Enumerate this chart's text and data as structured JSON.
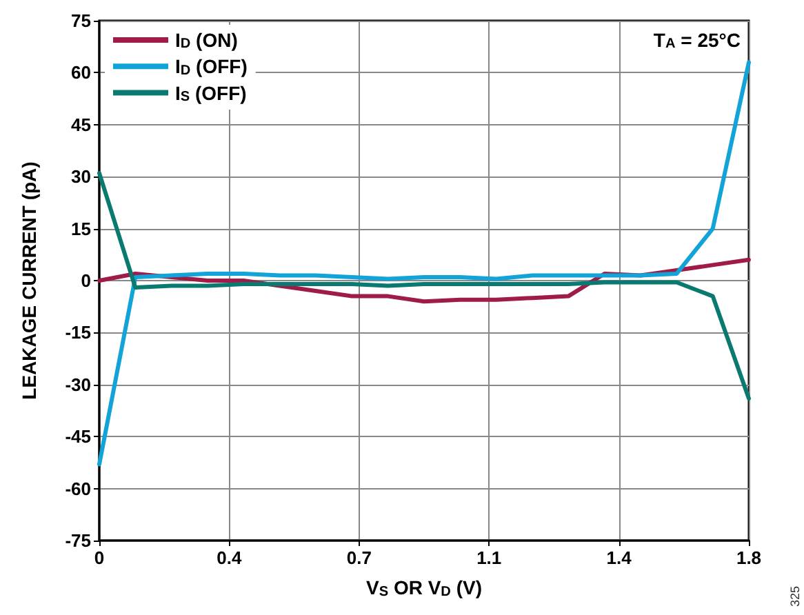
{
  "chart_data": {
    "type": "line",
    "xlabel": "V$_{S}$ OR V$_{D}$ (V)",
    "ylabel": "LEAKAGE CURRENT (pA)",
    "annotations": [
      "T$_{A}$ = 25°C",
      "325"
    ],
    "x": [
      0,
      0.1,
      0.2,
      0.3,
      0.4,
      0.5,
      0.6,
      0.7,
      0.8,
      0.9,
      1.0,
      1.1,
      1.2,
      1.3,
      1.4,
      1.5,
      1.6,
      1.7,
      1.8
    ],
    "series": [
      {
        "name": "I$_{D}$ (ON)",
        "color": "#a01c48",
        "values": [
          0,
          2,
          1,
          0,
          0,
          -1.5,
          -3,
          -4.5,
          -4.5,
          -6,
          -5.5,
          -5.5,
          -5,
          -4.5,
          2,
          1.5,
          3,
          4.5,
          6
        ]
      },
      {
        "name": "I$_{D}$ (OFF)",
        "color": "#12a3d8",
        "values": [
          -53,
          1,
          1.5,
          2,
          2,
          1.5,
          1.5,
          1,
          0.5,
          1,
          1,
          0.5,
          1.5,
          1.5,
          1.5,
          1.5,
          2,
          15,
          63
        ]
      },
      {
        "name": "I$_{S}$ (OFF)",
        "color": "#0a7a70",
        "values": [
          31,
          -2,
          -1.5,
          -1.5,
          -1,
          -1,
          -1,
          -1,
          -1.5,
          -1,
          -1,
          -1,
          -1,
          -1,
          -0.5,
          -0.5,
          -0.5,
          -4.5,
          -34
        ]
      }
    ],
    "xlim": [
      0,
      1.8
    ],
    "xticks": [
      0,
      {
        "value": 0.36,
        "label": "0.4"
      },
      {
        "value": 0.72,
        "label": "0.7"
      },
      {
        "value": 1.08,
        "label": "1.1"
      },
      {
        "value": 1.44,
        "label": "1.4"
      },
      1.8
    ],
    "ylim": [
      -75,
      75
    ],
    "yticks": [
      -75,
      -60,
      -45,
      -30,
      -15,
      0,
      15,
      30,
      45,
      60,
      75
    ],
    "grid": true,
    "legend": "top left",
    "marker": "none",
    "line_style": "solid"
  }
}
